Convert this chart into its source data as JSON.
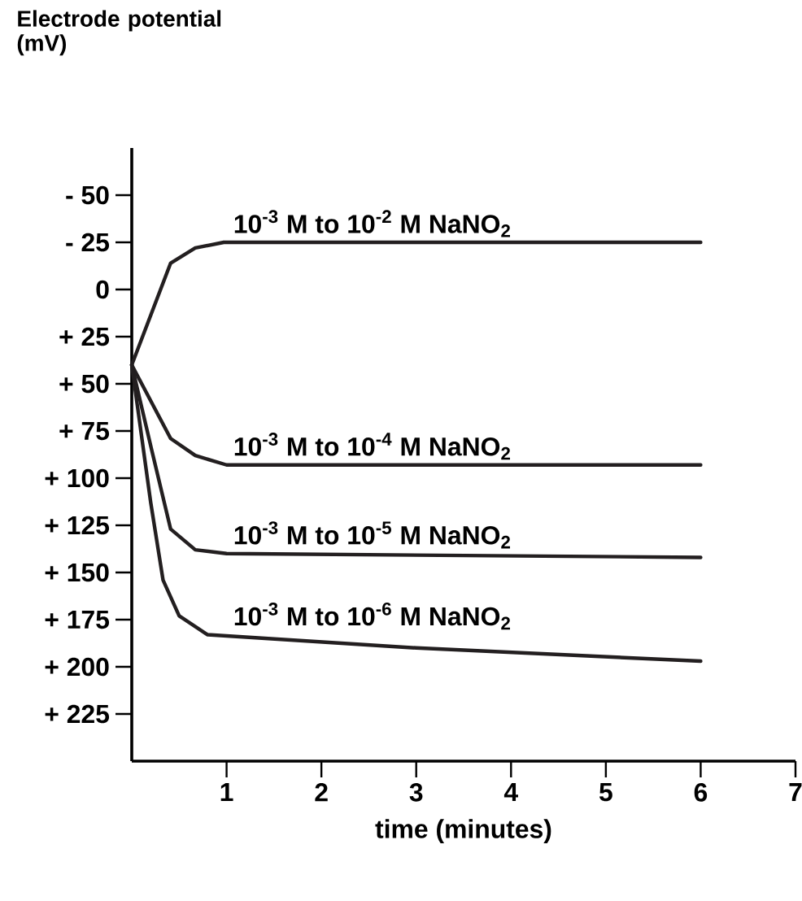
{
  "chart_data": {
    "type": "line",
    "xlabel": "time (minutes)",
    "ylabel": "Electrode potential (mV)",
    "xlim": [
      0,
      7
    ],
    "xticks": [
      1,
      2,
      3,
      4,
      5,
      6,
      7
    ],
    "ylim": [
      250,
      -75
    ],
    "yticks": [
      {
        "value": -50,
        "label": "- 50"
      },
      {
        "value": -25,
        "label": "- 25"
      },
      0,
      {
        "value": 25,
        "label": "+ 25"
      },
      {
        "value": 50,
        "label": "+ 50"
      },
      {
        "value": 75,
        "label": "+ 75"
      },
      {
        "value": 100,
        "label": "+ 100"
      },
      {
        "value": 125,
        "label": "+ 125"
      },
      {
        "value": 150,
        "label": "+ 150"
      },
      {
        "value": 175,
        "label": "+ 175"
      },
      {
        "value": 200,
        "label": "+ 200"
      },
      {
        "value": 225,
        "label": "+ 225"
      }
    ],
    "grid": false,
    "legend": false,
    "marker": "none",
    "line_style": "solid",
    "series": [
      {
        "name": "10$^{-3}$ M  to 10$^{-2}$ M  NaNO$_{2}$",
        "color": "#231f20",
        "x": [
          0,
          0.41,
          0.67,
          0.97,
          6
        ],
        "values": [
          40,
          -14,
          -22,
          -25,
          -25
        ]
      },
      {
        "name": "10$^{-3}$ M  to 10$^{-4}$ M  NaNO$_{2}$",
        "color": "#231f20",
        "x": [
          0,
          0.41,
          0.67,
          1,
          6
        ],
        "values": [
          40,
          79,
          88,
          93,
          93
        ]
      },
      {
        "name": "10$^{-3}$ M  to 10$^{-5}$ M  NaNO$_{2}$",
        "color": "#231f20",
        "x": [
          0,
          0.21,
          0.41,
          0.67,
          1,
          6
        ],
        "values": [
          40,
          85,
          127,
          138,
          140,
          142
        ]
      },
      {
        "name": "10$^{-3}$ M  to 10$^{-6}$ M  NaNO$_{2}$",
        "color": "#231f20",
        "x": [
          0,
          0.2,
          0.33,
          0.5,
          0.8,
          3,
          6
        ],
        "values": [
          40,
          113,
          154,
          173,
          183,
          190,
          197
        ]
      }
    ]
  }
}
